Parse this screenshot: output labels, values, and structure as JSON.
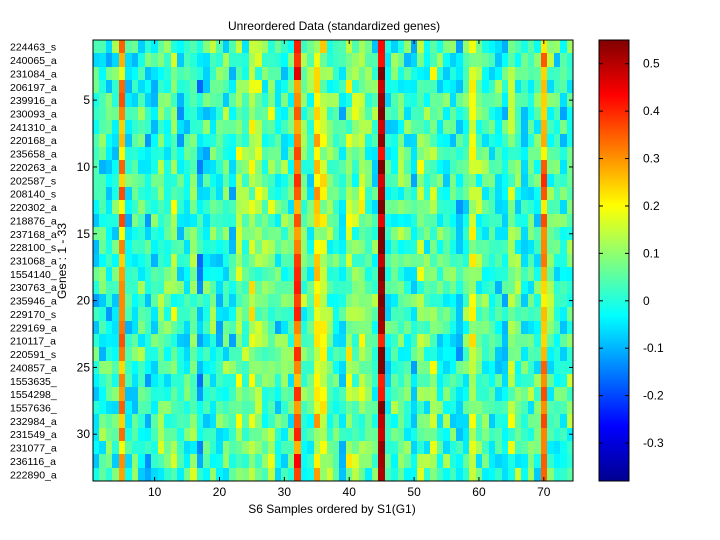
{
  "chart_data": {
    "type": "heatmap",
    "title": "Unreordered Data (standardized genes)",
    "xlabel": "S6 Samples ordered by S1(G1)",
    "ylabel": "Genes : 1 - 33",
    "x_ticks": [
      10,
      20,
      30,
      40,
      50,
      60,
      70
    ],
    "y_ticks": [
      5,
      10,
      15,
      20,
      25,
      30
    ],
    "xlim": [
      0.5,
      74.5
    ],
    "ylim": [
      0.5,
      33.5
    ],
    "n_samples": 74,
    "row_labels": [
      "224463_s",
      "240065_a",
      "231084_a",
      "206197_a",
      "239916_a",
      "230093_a",
      "241310_a",
      "220168_a",
      "235658_a",
      "220263_a",
      "202587_s",
      "208140_s",
      "220302_a",
      "218876_a",
      "237168_a",
      "228100_s",
      "231068_a",
      "1554140_",
      "230763_a",
      "235946_a",
      "229170_s",
      "229169_a",
      "210117_a",
      "220591_s",
      "240857_a",
      "1553635_",
      "1554298_",
      "1557636_",
      "232984_a",
      "231549_a",
      "231077_a",
      "236116_a",
      "222890_a"
    ],
    "colorbar": {
      "colormap": "jet",
      "clim": [
        -0.38,
        0.55
      ],
      "ticks": [
        -0.3,
        -0.2,
        -0.1,
        0,
        0.1,
        0.2,
        0.3,
        0.4,
        0.5
      ],
      "tick_labels": [
        "-0.3",
        "-0.2",
        "-0.1",
        "0",
        "0.1",
        "0.2",
        "0.3",
        "0.4",
        "0.5"
      ]
    },
    "column_means": [
      0.0,
      0.02,
      -0.01,
      0.03,
      0.3,
      -0.02,
      0.01,
      0.02,
      -0.03,
      0.0,
      0.05,
      0.04,
      0.08,
      -0.02,
      0.0,
      0.06,
      -0.05,
      0.01,
      0.02,
      0.0,
      0.03,
      0.0,
      0.1,
      0.06,
      0.14,
      0.1,
      0.05,
      0.08,
      0.0,
      0.02,
      0.03,
      0.35,
      0.05,
      0.02,
      0.2,
      0.16,
      0.06,
      0.03,
      -0.02,
      0.12,
      0.08,
      0.1,
      0.04,
      0.02,
      0.52,
      0.0,
      0.04,
      0.06,
      0.02,
      -0.02,
      0.08,
      0.04,
      0.1,
      0.0,
      0.02,
      0.0,
      -0.04,
      0.02,
      0.14,
      0.05,
      0.02,
      0.0,
      0.0,
      -0.02,
      0.08,
      0.04,
      0.0,
      0.03,
      0.02,
      0.3,
      0.05,
      0.02,
      0.0,
      0.04
    ]
  }
}
